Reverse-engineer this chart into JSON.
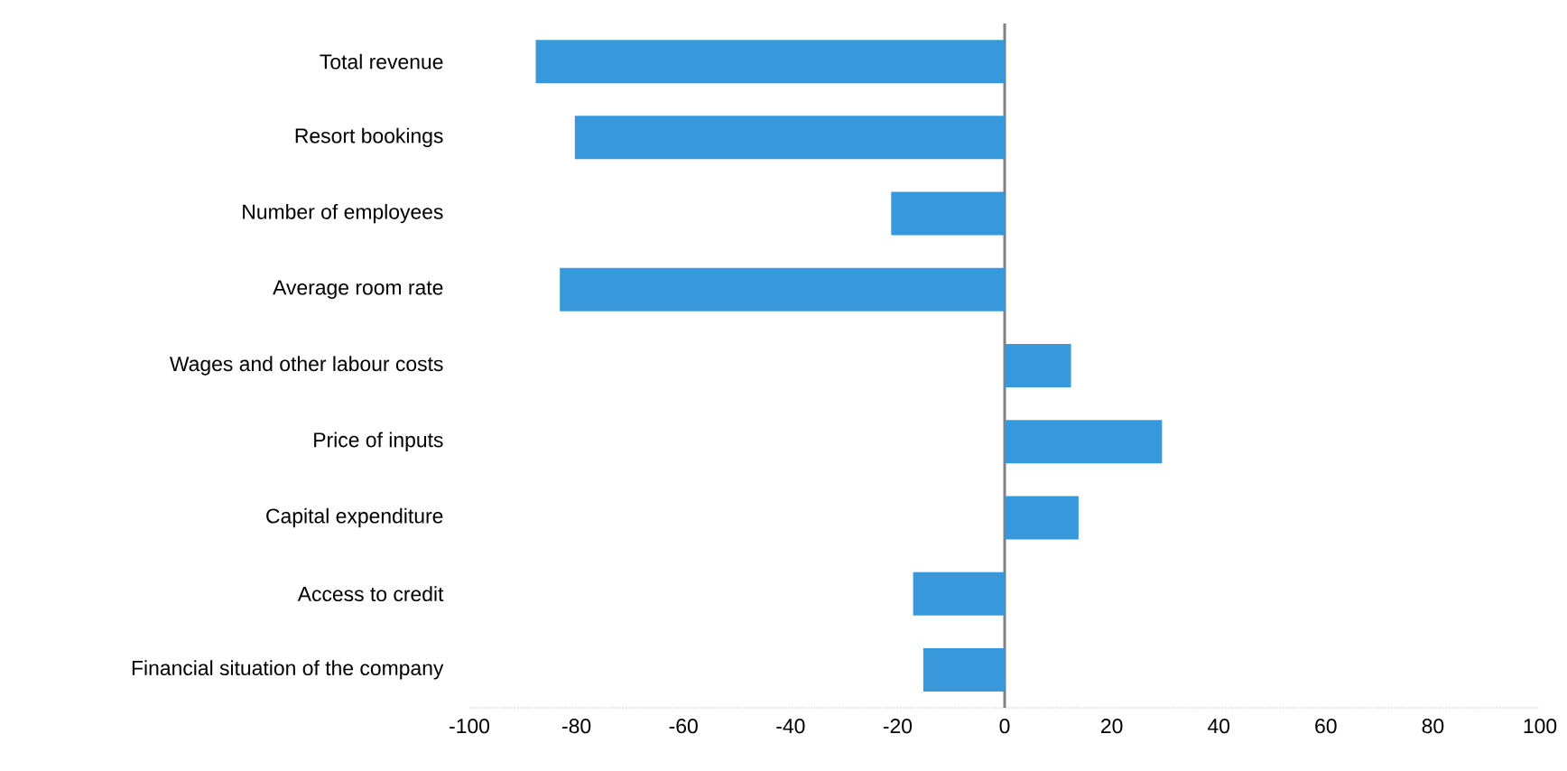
{
  "chart_data": {
    "type": "bar",
    "orientation": "horizontal",
    "color": "#3798db",
    "categories": [
      "Total revenue",
      "Resort bookings",
      "Number of employees",
      "Average room rate",
      "Wages and other labour costs",
      "Price of inputs",
      "Capital expenditure",
      "Access to credit",
      "Financial situation of the company"
    ],
    "values": [
      -87.6,
      -80.3,
      -21.2,
      -83.1,
      12.4,
      29.4,
      13.8,
      -17.1,
      -15.2
    ],
    "xlim": [
      -100,
      100
    ],
    "xticks": [
      -100,
      -80,
      -60,
      -40,
      -20,
      0,
      20,
      40,
      60,
      80,
      100
    ]
  }
}
